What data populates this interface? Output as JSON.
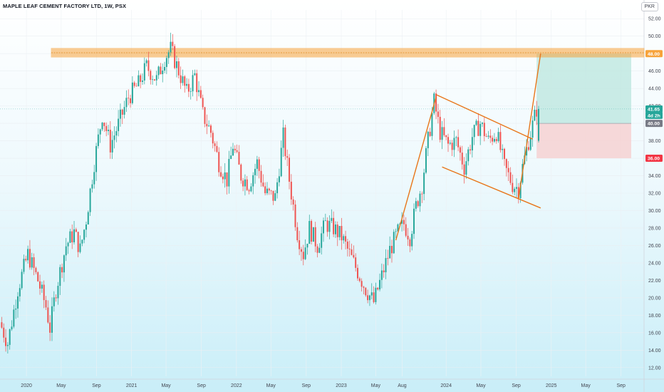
{
  "title": "MAPLE LEAF CEMENT FACTORY LTD, 1W, PSX",
  "currency": "PKR",
  "colors": {
    "up": "#26a69a",
    "down": "#ef5350",
    "resistance": "#f7a33a",
    "channel": "#e8761a",
    "target_zone": "#b9e6dd",
    "stop_zone": "#f6d0cf"
  },
  "chart_data": {
    "type": "candlestick",
    "ylim": [
      11,
      53
    ],
    "y_ticks": [
      "52.00",
      "50.00",
      "48.00",
      "46.00",
      "44.00",
      "42.00",
      "40.00",
      "38.00",
      "36.00",
      "34.00",
      "32.00",
      "30.00",
      "28.00",
      "26.00",
      "24.00",
      "22.00",
      "20.00",
      "18.00",
      "16.00",
      "14.00",
      "12.00"
    ],
    "x_ticks": [
      "2020",
      "May",
      "Sep",
      "2021",
      "May",
      "Sep",
      "2022",
      "May",
      "Sep",
      "2023",
      "May",
      "Aug",
      "2024",
      "May",
      "Sep",
      "2025",
      "May",
      "Sep"
    ],
    "price_labels": {
      "target": "48.00",
      "last": "41.65",
      "countdown": "4d 2h",
      "entry": "40.00",
      "stop": "36.00"
    },
    "resistance_zone": [
      47.6,
      48.6
    ],
    "trade": {
      "target": 48.0,
      "entry": 40.0,
      "stop": 36.0,
      "last": 41.65
    },
    "channel": {
      "upper": {
        "from": [
          "2023-11-27",
          43.3
        ],
        "to": [
          "2024-10-28",
          38.2
        ]
      },
      "lower": {
        "from": [
          "2023-12-18",
          35.0
        ],
        "to": [
          "2024-11-25",
          30.3
        ]
      },
      "rally_leg": {
        "from": [
          "2023-07-10",
          26.6
        ],
        "to": [
          "2023-11-27",
          43.0
        ]
      },
      "breakout_leg": {
        "from": [
          "2024-09-09",
          31.4
        ],
        "to": [
          "2024-11-25",
          48.0
        ]
      }
    },
    "anchors": [
      [
        "2019-10-07",
        17.2
      ],
      [
        "2019-11-04",
        14.8
      ],
      [
        "2019-12-09",
        21.0
      ],
      [
        "2020-01-13",
        25.0
      ],
      [
        "2020-02-17",
        22.0
      ],
      [
        "2020-03-16",
        19.0
      ],
      [
        "2020-03-30",
        16.5
      ],
      [
        "2020-04-20",
        21.0
      ],
      [
        "2020-05-25",
        26.0
      ],
      [
        "2020-06-22",
        27.5
      ],
      [
        "2020-07-13",
        25.5
      ],
      [
        "2020-08-03",
        29.0
      ],
      [
        "2020-08-31",
        35.5
      ],
      [
        "2020-09-28",
        41.0
      ],
      [
        "2020-10-26",
        37.5
      ],
      [
        "2020-11-30",
        40.5
      ],
      [
        "2020-12-28",
        43.0
      ],
      [
        "2021-02-01",
        44.5
      ],
      [
        "2021-03-01",
        46.5
      ],
      [
        "2021-04-05",
        45.0
      ],
      [
        "2021-05-03",
        47.5
      ],
      [
        "2021-05-24",
        48.5
      ],
      [
        "2021-06-21",
        46.0
      ],
      [
        "2021-07-19",
        43.5
      ],
      [
        "2021-08-16",
        45.5
      ],
      [
        "2021-09-13",
        41.0
      ],
      [
        "2021-10-11",
        39.0
      ],
      [
        "2021-11-08",
        35.5
      ],
      [
        "2021-12-06",
        33.5
      ],
      [
        "2021-12-27",
        37.5
      ],
      [
        "2022-01-24",
        34.0
      ],
      [
        "2022-02-21",
        33.0
      ],
      [
        "2022-03-21",
        35.5
      ],
      [
        "2022-04-18",
        32.0
      ],
      [
        "2022-05-23",
        31.5
      ],
      [
        "2022-06-20",
        38.5
      ],
      [
        "2022-07-11",
        33.5
      ],
      [
        "2022-08-08",
        27.5
      ],
      [
        "2022-08-29",
        25.0
      ],
      [
        "2022-09-19",
        28.0
      ],
      [
        "2022-10-17",
        26.0
      ],
      [
        "2022-11-14",
        28.5
      ],
      [
        "2022-12-12",
        28.0
      ],
      [
        "2023-01-09",
        27.0
      ],
      [
        "2023-02-06",
        25.0
      ],
      [
        "2023-03-06",
        23.0
      ],
      [
        "2023-04-03",
        21.0
      ],
      [
        "2023-05-01",
        19.5
      ],
      [
        "2023-05-29",
        22.5
      ],
      [
        "2023-06-26",
        25.5
      ],
      [
        "2023-07-24",
        27.5
      ],
      [
        "2023-08-14",
        28.5
      ],
      [
        "2023-09-04",
        27.0
      ],
      [
        "2023-09-25",
        30.5
      ],
      [
        "2023-10-16",
        33.0
      ],
      [
        "2023-11-06",
        38.0
      ],
      [
        "2023-11-27",
        42.5
      ],
      [
        "2023-12-18",
        39.0
      ],
      [
        "2024-01-15",
        37.5
      ],
      [
        "2024-02-12",
        38.0
      ],
      [
        "2024-03-11",
        35.0
      ],
      [
        "2024-04-08",
        38.5
      ],
      [
        "2024-05-06",
        40.0
      ],
      [
        "2024-06-03",
        38.0
      ],
      [
        "2024-07-01",
        39.0
      ],
      [
        "2024-07-29",
        35.0
      ],
      [
        "2024-08-26",
        33.0
      ],
      [
        "2024-09-16",
        32.5
      ],
      [
        "2024-09-30",
        35.0
      ],
      [
        "2024-10-21",
        38.0
      ],
      [
        "2024-11-04",
        39.8
      ],
      [
        "2024-11-18",
        41.65
      ]
    ]
  }
}
